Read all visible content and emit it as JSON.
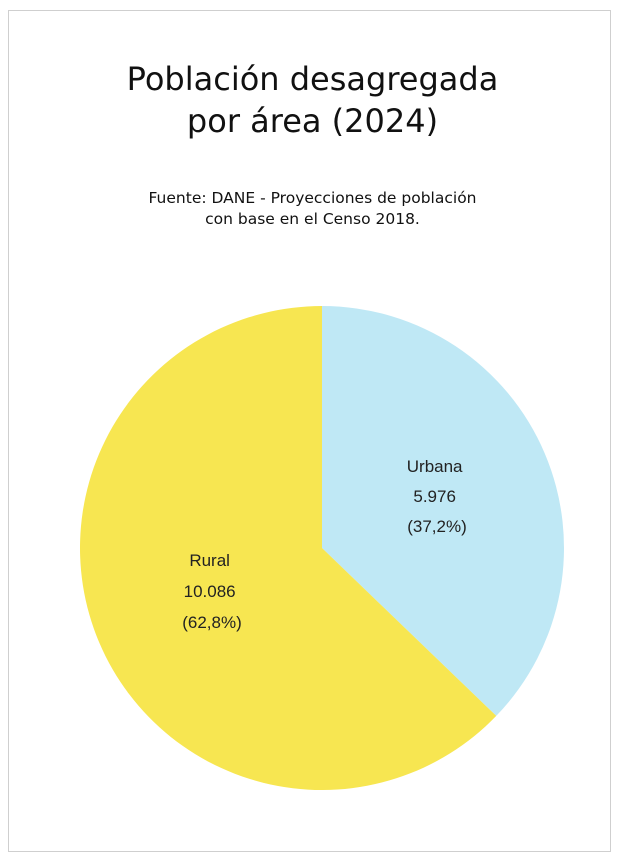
{
  "chart_data": {
    "type": "pie",
    "title_lines": [
      "Población desagregada",
      "por área (2024)"
    ],
    "subtitle_lines": [
      "Fuente: DANE - Proyecciones de población",
      "con base en el Censo 2018."
    ],
    "slices": [
      {
        "label": "Urbana",
        "value": 5976,
        "value_text": "5.976",
        "percent_text": "(37,2%)",
        "percent": 37.2,
        "color": "#bfe8f5"
      },
      {
        "label": "Rural",
        "value": 10086,
        "value_text": "10.086",
        "percent_text": "(62,8%)",
        "percent": 62.8,
        "color": "#f7e651"
      }
    ]
  }
}
